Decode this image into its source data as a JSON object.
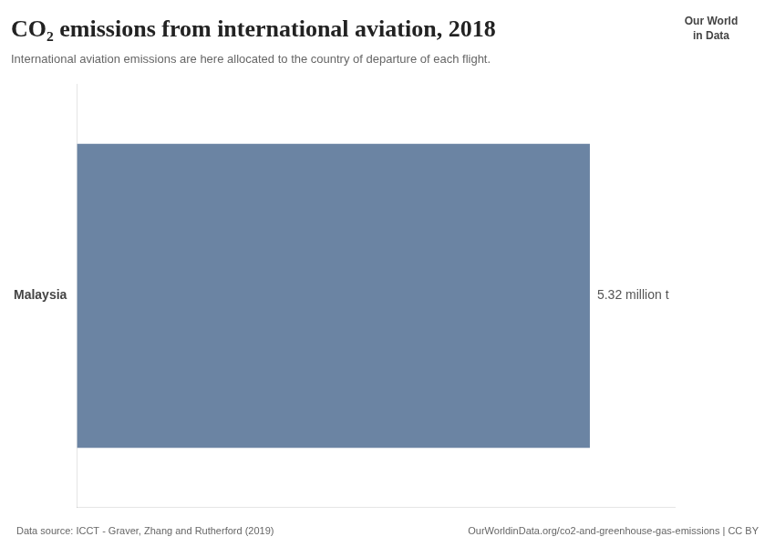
{
  "chart_data": {
    "type": "bar",
    "orientation": "horizontal",
    "title": "CO₂ emissions from international aviation, 2018",
    "subtitle": "International aviation emissions are here allocated to the country of departure of each flight.",
    "categories": [
      "Malaysia"
    ],
    "values": [
      5.32
    ],
    "value_labels": [
      "5.32 million t"
    ],
    "data_labels": true,
    "color": "#6b84a3",
    "xlim": [
      0,
      6.2
    ],
    "xticks": [],
    "tick_labels": "y",
    "grid": false,
    "annotations": [
      "Data source: ICCT - Graver, Zhang and Rutherford (2019)",
      "OurWorldinData.org/co2-and-greenhouse-gas-emissions | CC BY",
      "Our World",
      "in Data"
    ]
  }
}
